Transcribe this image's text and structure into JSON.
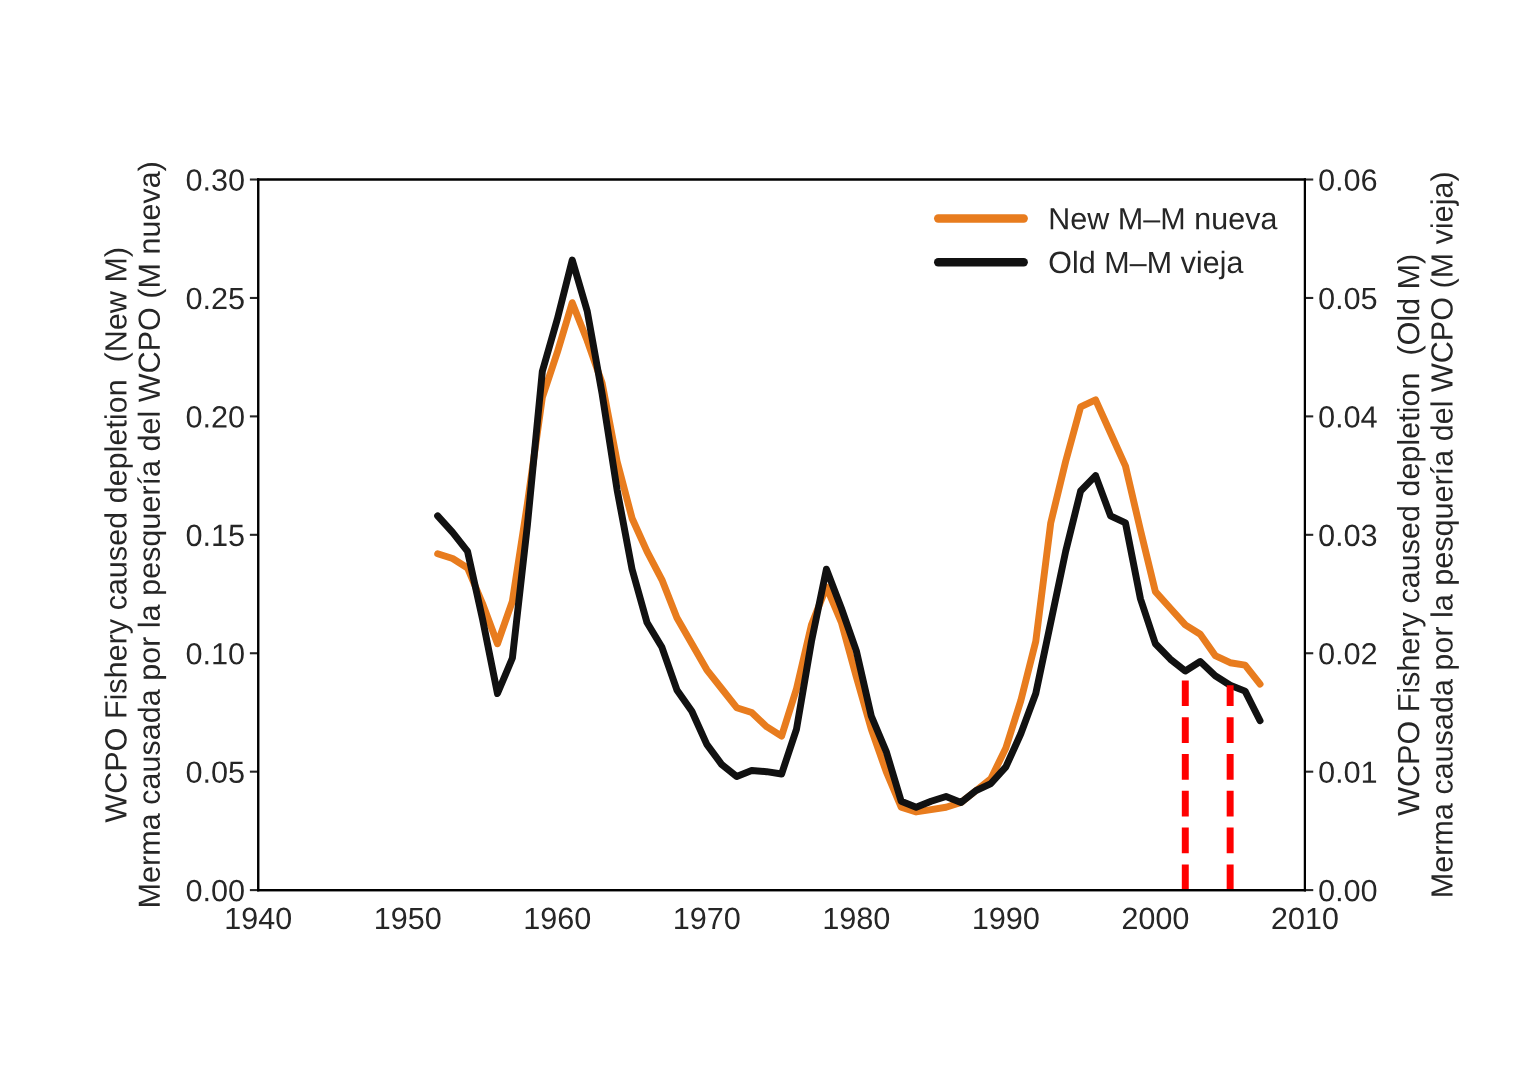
{
  "chart_data": {
    "type": "line",
    "x": [
      1952,
      1953,
      1954,
      1955,
      1956,
      1957,
      1958,
      1959,
      1960,
      1961,
      1962,
      1963,
      1964,
      1965,
      1966,
      1967,
      1968,
      1969,
      1970,
      1971,
      1972,
      1973,
      1974,
      1975,
      1976,
      1977,
      1978,
      1979,
      1980,
      1981,
      1982,
      1983,
      1984,
      1985,
      1986,
      1987,
      1988,
      1989,
      1990,
      1991,
      1992,
      1993,
      1994,
      1995,
      1996,
      1997,
      1998,
      1999,
      2000,
      2001,
      2002,
      2003,
      2004,
      2005,
      2006,
      2007
    ],
    "series": [
      {
        "name": "New M–M nueva",
        "color": "#e87c1e",
        "values": [
          0.142,
          0.14,
          0.136,
          0.121,
          0.104,
          0.122,
          0.163,
          0.208,
          0.227,
          0.248,
          0.232,
          0.214,
          0.181,
          0.157,
          0.143,
          0.131,
          0.115,
          0.104,
          0.093,
          0.085,
          0.077,
          0.075,
          0.069,
          0.065,
          0.085,
          0.112,
          0.128,
          0.113,
          0.09,
          0.068,
          0.05,
          0.035,
          0.033,
          0.034,
          0.035,
          0.037,
          0.042,
          0.047,
          0.06,
          0.08,
          0.105,
          0.155,
          0.181,
          0.204,
          0.207,
          0.193,
          0.179,
          0.152,
          0.126,
          0.119,
          0.112,
          0.108,
          0.099,
          0.096,
          0.095,
          0.087
        ]
      },
      {
        "name": "Old M–M vieja",
        "color": "#111111",
        "axis": "y2",
        "values": [
          0.0316,
          0.0302,
          0.0286,
          0.0229,
          0.0166,
          0.0196,
          0.0308,
          0.0438,
          0.0482,
          0.0532,
          0.0489,
          0.0419,
          0.0338,
          0.0271,
          0.0226,
          0.0205,
          0.0169,
          0.0151,
          0.0123,
          0.0106,
          0.0096,
          0.0101,
          0.01,
          0.0098,
          0.0136,
          0.021,
          0.0271,
          0.0238,
          0.0202,
          0.0147,
          0.0117,
          0.0075,
          0.007,
          0.0075,
          0.0079,
          0.0074,
          0.0084,
          0.009,
          0.0104,
          0.0132,
          0.0166,
          0.0226,
          0.0286,
          0.0337,
          0.035,
          0.0316,
          0.031,
          0.0246,
          0.0208,
          0.0195,
          0.0185,
          0.0193,
          0.0181,
          0.0173,
          0.0168,
          0.0143
        ]
      }
    ],
    "xlim": [
      1940,
      2010
    ],
    "xticks": [
      1940,
      1950,
      1960,
      1970,
      1980,
      1990,
      2000,
      2010
    ],
    "ylim": [
      0,
      0.3
    ],
    "yticks": [
      {
        "value": 0,
        "label": "0.00"
      },
      {
        "value": 0.05,
        "label": "0.05"
      },
      {
        "value": 0.1,
        "label": "0.10"
      },
      {
        "value": 0.15,
        "label": "0.15"
      },
      {
        "value": 0.2,
        "label": "0.20"
      },
      {
        "value": 0.25,
        "label": "0.25"
      },
      {
        "value": 0.3,
        "label": "0.30"
      }
    ],
    "y2lim": [
      0,
      0.06
    ],
    "y2ticks": [
      {
        "value": 0,
        "label": "0.00"
      },
      {
        "value": 0.01,
        "label": "0.01"
      },
      {
        "value": 0.02,
        "label": "0.02"
      },
      {
        "value": 0.03,
        "label": "0.03"
      },
      {
        "value": 0.04,
        "label": "0.04"
      },
      {
        "value": 0.05,
        "label": "0.05"
      },
      {
        "value": 0.06,
        "label": "0.06"
      }
    ],
    "ylabel": "WCPO Fishery caused depletion  (New M)\nMerma causada por la pesquería del WCPO (M nueva)",
    "y2label": "WCPO Fishery caused depletion  (Old M)\nMerma causada por la pesquería del WCPO (M vieja)",
    "ref_lines": [
      {
        "axis": "x",
        "value": 2002,
        "color": "#ff0000",
        "line_style": "dashed"
      },
      {
        "axis": "x",
        "value": 2005,
        "color": "#ff0000",
        "line_style": "dashed"
      }
    ],
    "legend": "top right",
    "grid": false,
    "line_style": "solid",
    "marker": "none"
  }
}
